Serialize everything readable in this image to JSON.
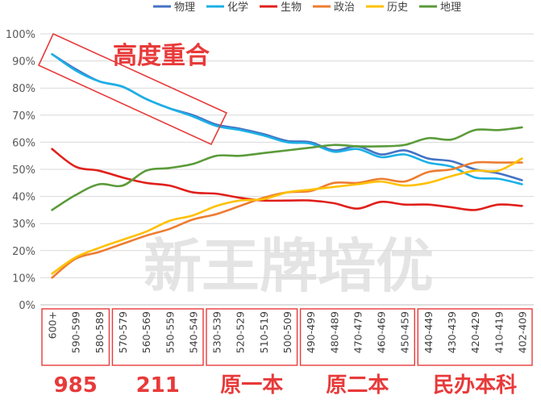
{
  "chart_data": {
    "type": "line",
    "title": "",
    "xlabel": "",
    "ylabel": "",
    "ylim": [
      0,
      100
    ],
    "yticks": [
      "0%",
      "10%",
      "20%",
      "30%",
      "40%",
      "50%",
      "60%",
      "70%",
      "80%",
      "90%",
      "100%"
    ],
    "grid": true,
    "legend": "top",
    "categories": [
      "600+",
      "590-599",
      "580-589",
      "570-579",
      "560-569",
      "550-559",
      "540-549",
      "530-539",
      "520-529",
      "510-519",
      "500-509",
      "490-499",
      "480-489",
      "470-479",
      "460-469",
      "450-459",
      "440-449",
      "430-439",
      "420-429",
      "410-419",
      "402-409"
    ],
    "series": [
      {
        "name": "物理",
        "color": "#4472C4",
        "values": [
          92.5,
          87,
          82.5,
          80.5,
          76,
          72.5,
          70,
          66.5,
          65,
          63,
          60.5,
          60,
          57,
          58.5,
          55.5,
          57,
          54,
          53,
          50,
          48.5,
          46
        ]
      },
      {
        "name": "化学",
        "color": "#1CB0E6",
        "values": [
          92.5,
          86.5,
          82.5,
          80.5,
          76,
          72.5,
          69.5,
          66,
          64.5,
          62.5,
          60,
          59.5,
          56.5,
          57.5,
          54.5,
          55.5,
          52.5,
          51,
          47,
          46.5,
          44.5
        ]
      },
      {
        "name": "生物",
        "color": "#E0201B",
        "values": [
          57.5,
          51,
          49.5,
          47,
          45,
          44,
          41.5,
          41,
          39.5,
          38.5,
          38.5,
          38.5,
          37.5,
          35.5,
          38,
          37,
          37,
          36,
          35,
          37,
          36.5
        ]
      },
      {
        "name": "政治",
        "color": "#ED7D31",
        "values": [
          10,
          17,
          19.5,
          22.5,
          25.5,
          28,
          31.5,
          33.5,
          36.5,
          39.5,
          41.5,
          42,
          45,
          45,
          46.5,
          45.5,
          49,
          50,
          52.5,
          52.5,
          52.5
        ]
      },
      {
        "name": "历史",
        "color": "#FFC000",
        "values": [
          11.5,
          17.5,
          21,
          24,
          27,
          31,
          33,
          36.5,
          38.5,
          39,
          41.5,
          42.5,
          43.5,
          44.5,
          45.5,
          44,
          45,
          47.5,
          49.5,
          49.5,
          54
        ]
      },
      {
        "name": "地理",
        "color": "#5B9B3A",
        "values": [
          35,
          40.5,
          44.5,
          44,
          49.5,
          50.5,
          52,
          55,
          55,
          56,
          57,
          58,
          59,
          58.5,
          58.5,
          59,
          61.5,
          61,
          64.5,
          64.5,
          65.5
        ]
      }
    ],
    "groups": [
      {
        "label": "985",
        "first": 0,
        "last": 2
      },
      {
        "label": "211",
        "first": 3,
        "last": 6
      },
      {
        "label": "原一本",
        "first": 7,
        "last": 10
      },
      {
        "label": "原二本",
        "first": 11,
        "last": 15
      },
      {
        "label": "民办本科",
        "first": 16,
        "last": 20
      }
    ],
    "annotation": {
      "text": "高度重合"
    },
    "watermark": "新王牌培优"
  },
  "colors": {
    "accent": "#E83A3A",
    "grid": "#D9D9D9",
    "axis": "#BFBFBF",
    "watermark": "#E4E4E4"
  }
}
